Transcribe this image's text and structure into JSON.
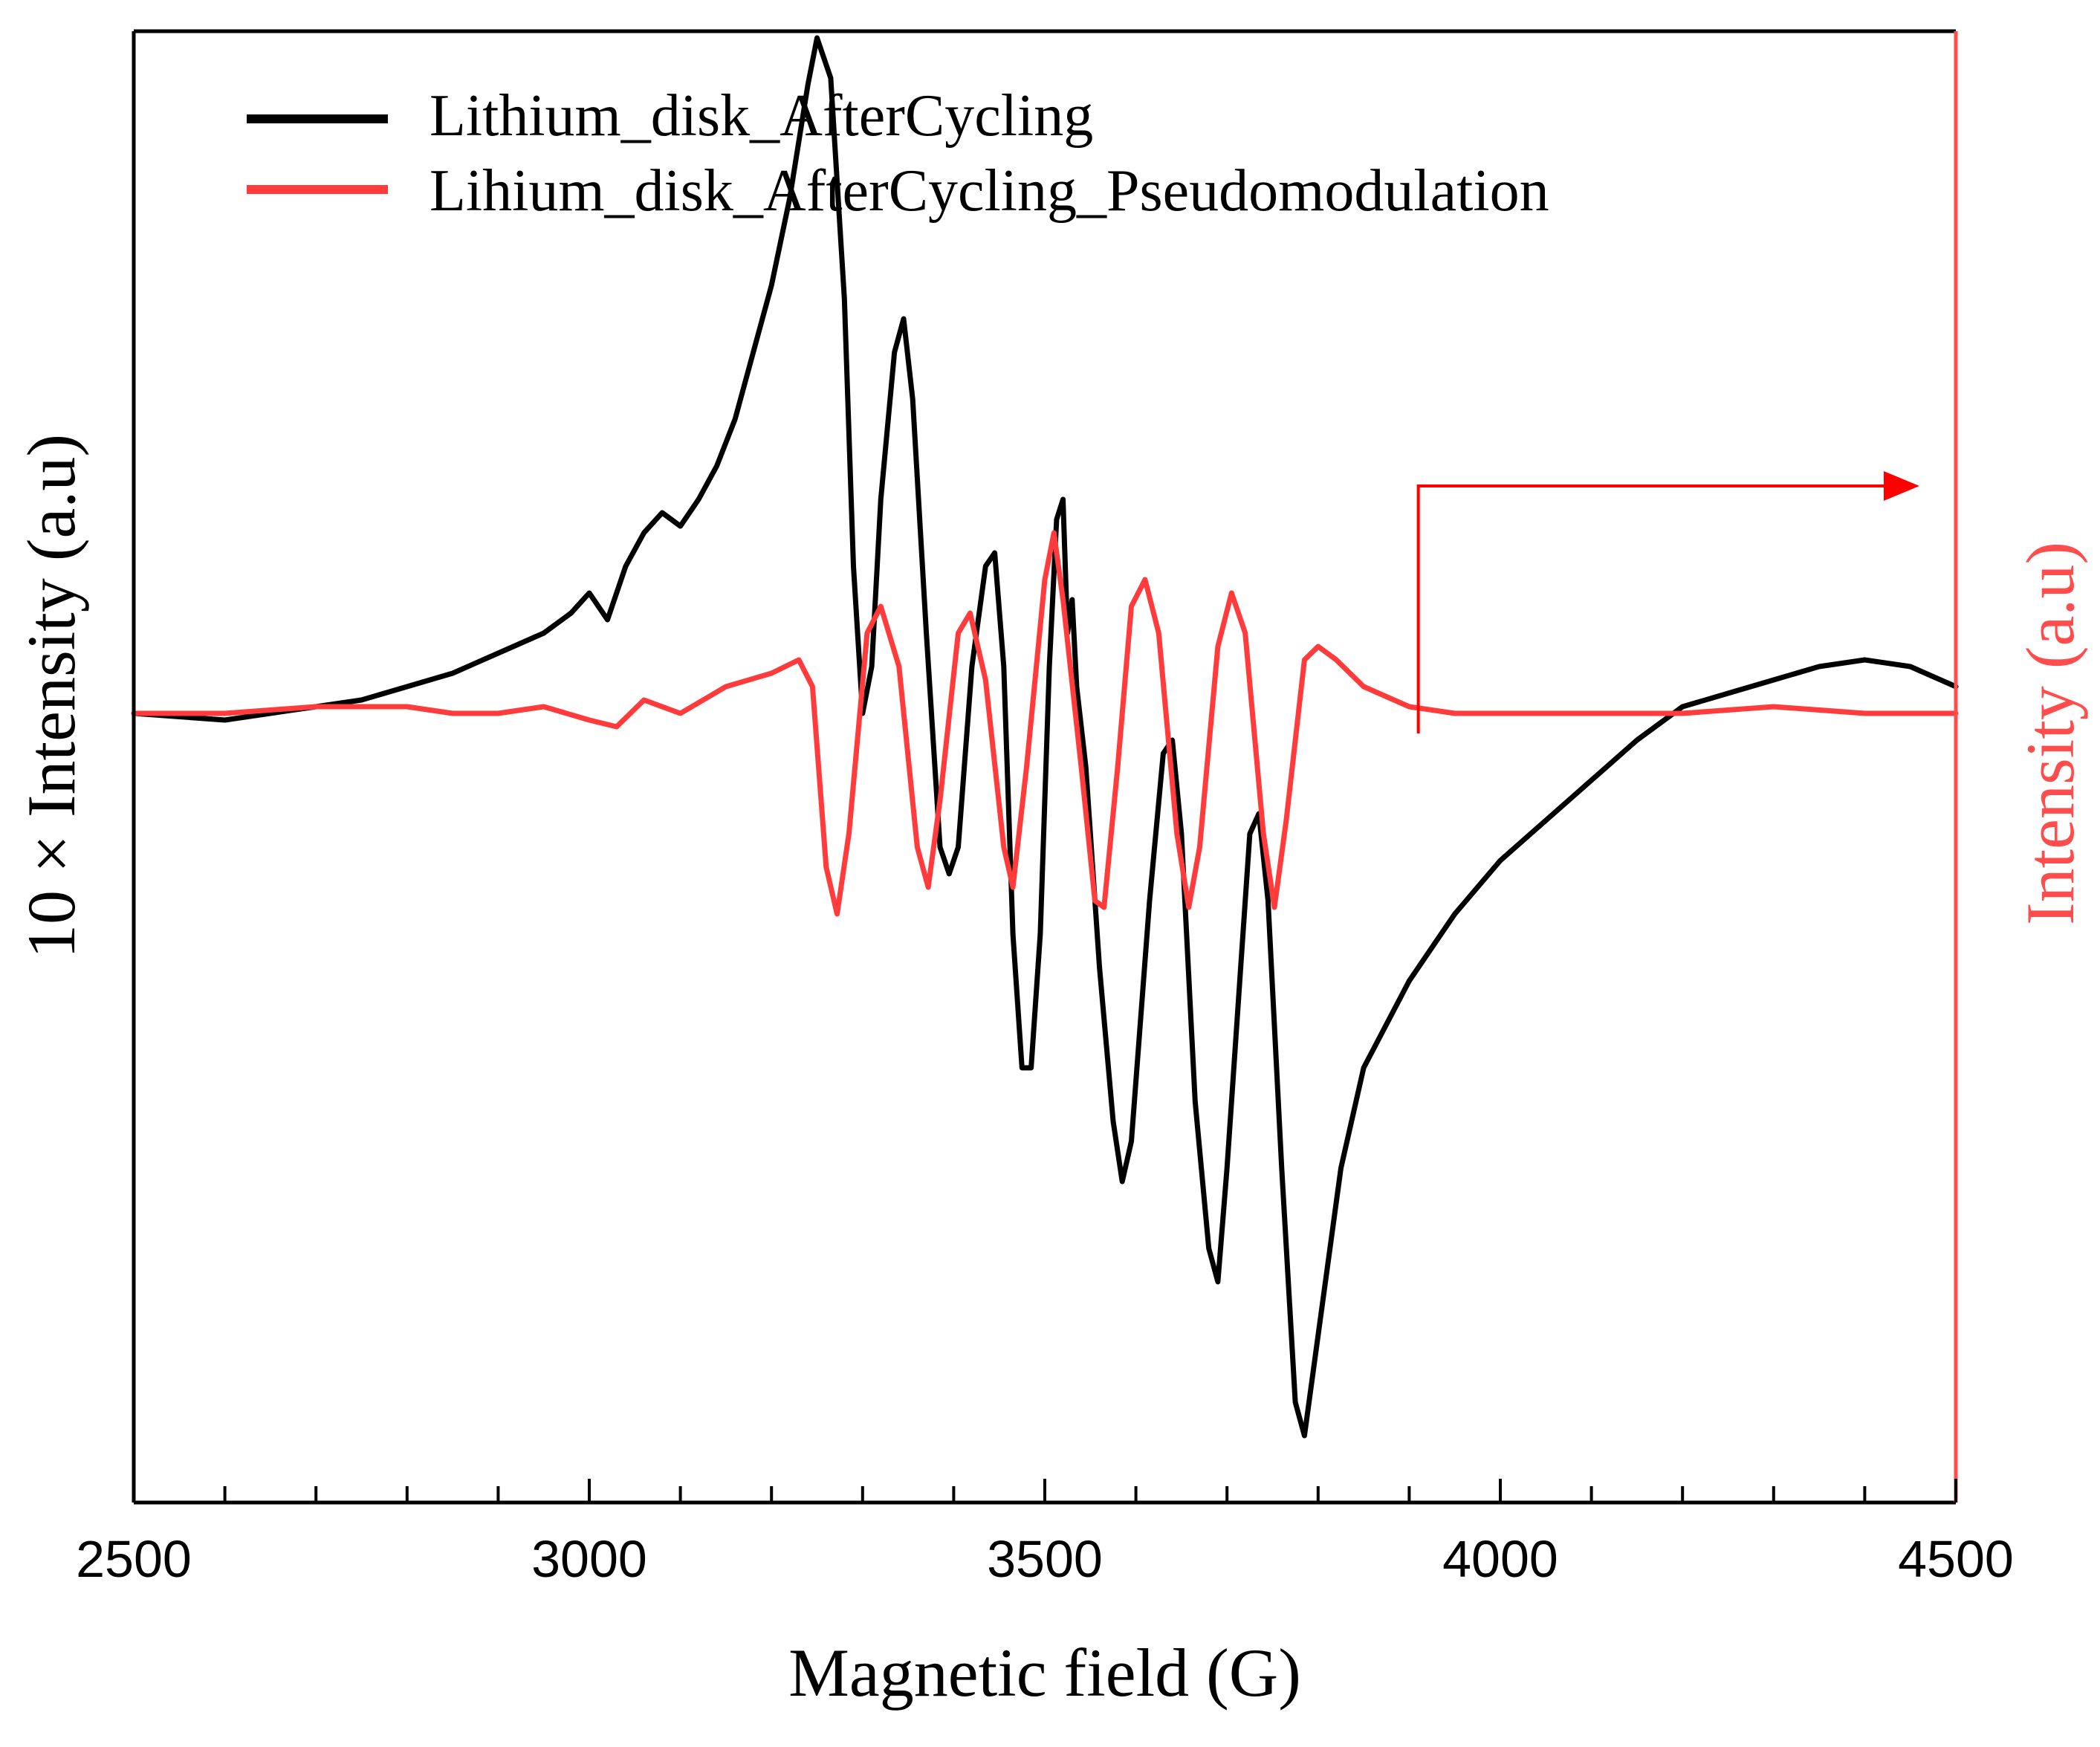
{
  "chart_data": {
    "type": "line",
    "title": "",
    "xlabel": "Magnetic field (G)",
    "ylabel_left": "10 × Intensity (a.u)",
    "ylabel_right": "Intensity (a.u)",
    "xlim": [
      2500,
      4500
    ],
    "xticks": [
      "2500",
      "3000",
      "3500",
      "4000",
      "4500"
    ],
    "x_minor_step": 100,
    "ylim": [
      -1.2,
      1.0
    ],
    "grid": false,
    "legend_position": "top-left",
    "colors": {
      "black_series": "#000000",
      "red_series": "#ff3b3b",
      "right_axis": "#ff4d4d",
      "arrow": "#ff0000"
    },
    "annotations": [
      {
        "type": "arrow",
        "from_x": 3910,
        "from_y": -0.05,
        "corner_y": 0.32,
        "to_x": 4460,
        "meaning": "red curve refers to right axis"
      }
    ],
    "series": [
      {
        "name": "Lithium_disk_AfterCycling",
        "color": "#000000",
        "axis": "left",
        "points": [
          [
            2500,
            -0.02
          ],
          [
            2600,
            -0.03
          ],
          [
            2700,
            -0.01
          ],
          [
            2750,
            0.0
          ],
          [
            2800,
            0.02
          ],
          [
            2850,
            0.04
          ],
          [
            2900,
            0.07
          ],
          [
            2950,
            0.1
          ],
          [
            2980,
            0.13
          ],
          [
            3000,
            0.16
          ],
          [
            3020,
            0.12
          ],
          [
            3040,
            0.2
          ],
          [
            3060,
            0.25
          ],
          [
            3080,
            0.28
          ],
          [
            3100,
            0.26
          ],
          [
            3120,
            0.3
          ],
          [
            3140,
            0.35
          ],
          [
            3160,
            0.42
          ],
          [
            3180,
            0.52
          ],
          [
            3200,
            0.62
          ],
          [
            3220,
            0.75
          ],
          [
            3240,
            0.92
          ],
          [
            3250,
            0.99
          ],
          [
            3265,
            0.93
          ],
          [
            3280,
            0.6
          ],
          [
            3290,
            0.2
          ],
          [
            3300,
            -0.02
          ],
          [
            3310,
            0.05
          ],
          [
            3320,
            0.3
          ],
          [
            3335,
            0.52
          ],
          [
            3345,
            0.57
          ],
          [
            3355,
            0.45
          ],
          [
            3370,
            0.1
          ],
          [
            3385,
            -0.22
          ],
          [
            3395,
            -0.26
          ],
          [
            3405,
            -0.22
          ],
          [
            3420,
            0.05
          ],
          [
            3435,
            0.2
          ],
          [
            3445,
            0.22
          ],
          [
            3455,
            0.05
          ],
          [
            3465,
            -0.35
          ],
          [
            3475,
            -0.55
          ],
          [
            3485,
            -0.55
          ],
          [
            3495,
            -0.35
          ],
          [
            3505,
            0.05
          ],
          [
            3513,
            0.27
          ],
          [
            3520,
            0.3
          ],
          [
            3525,
            0.1
          ],
          [
            3530,
            0.15
          ],
          [
            3535,
            0.02
          ],
          [
            3545,
            -0.1
          ],
          [
            3560,
            -0.4
          ],
          [
            3575,
            -0.63
          ],
          [
            3585,
            -0.72
          ],
          [
            3595,
            -0.66
          ],
          [
            3615,
            -0.3
          ],
          [
            3630,
            -0.08
          ],
          [
            3640,
            -0.06
          ],
          [
            3650,
            -0.2
          ],
          [
            3665,
            -0.6
          ],
          [
            3680,
            -0.82
          ],
          [
            3690,
            -0.87
          ],
          [
            3700,
            -0.7
          ],
          [
            3715,
            -0.4
          ],
          [
            3725,
            -0.2
          ],
          [
            3735,
            -0.17
          ],
          [
            3745,
            -0.3
          ],
          [
            3760,
            -0.7
          ],
          [
            3775,
            -1.05
          ],
          [
            3785,
            -1.1
          ],
          [
            3800,
            -0.95
          ],
          [
            3825,
            -0.7
          ],
          [
            3850,
            -0.55
          ],
          [
            3900,
            -0.42
          ],
          [
            3950,
            -0.32
          ],
          [
            4000,
            -0.24
          ],
          [
            4050,
            -0.18
          ],
          [
            4100,
            -0.12
          ],
          [
            4150,
            -0.06
          ],
          [
            4200,
            -0.01
          ],
          [
            4250,
            0.01
          ],
          [
            4300,
            0.03
          ],
          [
            4350,
            0.05
          ],
          [
            4400,
            0.06
          ],
          [
            4450,
            0.05
          ],
          [
            4500,
            0.02
          ]
        ]
      },
      {
        "name": "Lihium_disk_AfterCycling_Pseudomodulation",
        "color": "#ff3b3b",
        "axis": "right",
        "points": [
          [
            2500,
            -0.02
          ],
          [
            2600,
            -0.02
          ],
          [
            2700,
            -0.01
          ],
          [
            2800,
            -0.01
          ],
          [
            2850,
            -0.02
          ],
          [
            2900,
            -0.02
          ],
          [
            2950,
            -0.01
          ],
          [
            3000,
            -0.03
          ],
          [
            3030,
            -0.04
          ],
          [
            3060,
            0.0
          ],
          [
            3100,
            -0.02
          ],
          [
            3150,
            0.02
          ],
          [
            3200,
            0.04
          ],
          [
            3230,
            0.06
          ],
          [
            3245,
            0.02
          ],
          [
            3260,
            -0.25
          ],
          [
            3272,
            -0.32
          ],
          [
            3285,
            -0.2
          ],
          [
            3305,
            0.1
          ],
          [
            3320,
            0.14
          ],
          [
            3340,
            0.05
          ],
          [
            3360,
            -0.22
          ],
          [
            3372,
            -0.28
          ],
          [
            3385,
            -0.15
          ],
          [
            3405,
            0.1
          ],
          [
            3418,
            0.13
          ],
          [
            3435,
            0.03
          ],
          [
            3455,
            -0.22
          ],
          [
            3465,
            -0.28
          ],
          [
            3480,
            -0.1
          ],
          [
            3500,
            0.18
          ],
          [
            3510,
            0.25
          ],
          [
            3520,
            0.15
          ],
          [
            3540,
            -0.1
          ],
          [
            3555,
            -0.3
          ],
          [
            3565,
            -0.31
          ],
          [
            3580,
            -0.1
          ],
          [
            3595,
            0.14
          ],
          [
            3610,
            0.18
          ],
          [
            3625,
            0.1
          ],
          [
            3645,
            -0.2
          ],
          [
            3658,
            -0.31
          ],
          [
            3670,
            -0.22
          ],
          [
            3690,
            0.08
          ],
          [
            3705,
            0.16
          ],
          [
            3720,
            0.1
          ],
          [
            3740,
            -0.2
          ],
          [
            3752,
            -0.31
          ],
          [
            3765,
            -0.18
          ],
          [
            3785,
            0.06
          ],
          [
            3800,
            0.08
          ],
          [
            3820,
            0.06
          ],
          [
            3850,
            0.02
          ],
          [
            3900,
            -0.01
          ],
          [
            3950,
            -0.02
          ],
          [
            4000,
            -0.02
          ],
          [
            4100,
            -0.02
          ],
          [
            4200,
            -0.02
          ],
          [
            4300,
            -0.01
          ],
          [
            4400,
            -0.02
          ],
          [
            4500,
            -0.02
          ]
        ]
      }
    ]
  }
}
